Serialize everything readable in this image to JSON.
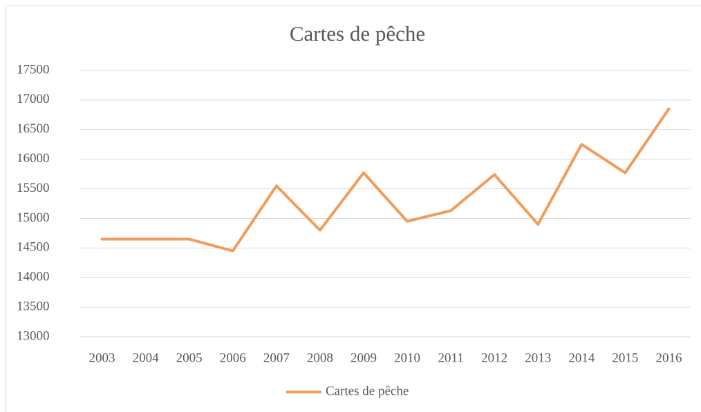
{
  "chart_data": {
    "type": "line",
    "title": "Cartes de pêche",
    "categories": [
      "2003",
      "2004",
      "2005",
      "2006",
      "2007",
      "2008",
      "2009",
      "2010",
      "2011",
      "2012",
      "2013",
      "2014",
      "2015",
      "2016"
    ],
    "series": [
      {
        "name": "Cartes de pêche",
        "color": "#f39c5a",
        "values": [
          14650,
          14650,
          14650,
          14450,
          15550,
          14800,
          15770,
          14950,
          15130,
          15740,
          14900,
          16250,
          15770,
          16850
        ]
      }
    ],
    "ylim": [
      13000,
      17500
    ],
    "yticks": [
      13000,
      13500,
      14000,
      14500,
      15000,
      15500,
      16000,
      16500,
      17000,
      17500
    ],
    "grid": true,
    "legend": "bottom"
  }
}
